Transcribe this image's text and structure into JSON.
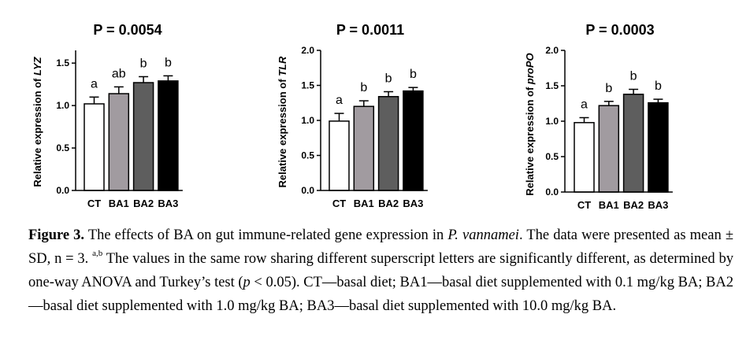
{
  "chart_data": [
    {
      "type": "bar",
      "title": "P = 0.0054",
      "ylabel_prefix": "Relative expression of ",
      "ylabel_gene": "LYZ",
      "categories": [
        "CT",
        "BA1",
        "BA2",
        "BA3"
      ],
      "values": [
        1.02,
        1.14,
        1.27,
        1.29
      ],
      "errors": [
        0.08,
        0.08,
        0.07,
        0.06
      ],
      "letters": [
        "a",
        "ab",
        "b",
        "b"
      ],
      "yticks": [
        "0.0",
        "0.5",
        "1.0",
        "1.5"
      ],
      "ylim": [
        0,
        1.65
      ],
      "colors": [
        "#ffffff",
        "#a19ba0",
        "#5e5e5e",
        "#000000"
      ]
    },
    {
      "type": "bar",
      "title": "P = 0.0011",
      "ylabel_prefix": "Relative expression of ",
      "ylabel_gene": "TLR",
      "categories": [
        "CT",
        "BA1",
        "BA2",
        "BA3"
      ],
      "values": [
        0.99,
        1.2,
        1.34,
        1.42
      ],
      "errors": [
        0.11,
        0.08,
        0.07,
        0.05
      ],
      "letters": [
        "a",
        "b",
        "b",
        "b"
      ],
      "yticks": [
        "0.0",
        "0.5",
        "1.0",
        "1.5",
        "2.0"
      ],
      "ylim": [
        0,
        2.0
      ],
      "colors": [
        "#ffffff",
        "#a19ba0",
        "#5e5e5e",
        "#000000"
      ]
    },
    {
      "type": "bar",
      "title": "P = 0.0003",
      "ylabel_prefix": "Relative expression of ",
      "ylabel_gene": "proPO",
      "categories": [
        "CT",
        "BA1",
        "BA2",
        "BA3"
      ],
      "values": [
        0.98,
        1.22,
        1.38,
        1.26
      ],
      "errors": [
        0.07,
        0.06,
        0.07,
        0.05
      ],
      "letters": [
        "a",
        "b",
        "b",
        "b"
      ],
      "yticks": [
        "0.0",
        "0.5",
        "1.0",
        "1.5",
        "2.0"
      ],
      "ylim": [
        0,
        2.0
      ],
      "colors": [
        "#ffffff",
        "#a19ba0",
        "#5e5e5e",
        "#000000"
      ]
    }
  ],
  "caption": {
    "label": "Figure 3.",
    "text1": " The effects of BA on gut immune-related gene expression in ",
    "species": "P. vannamei",
    "text2": ". The data were presented as mean ± SD, n = 3. ",
    "superscript": "a,b",
    "text3": " The values in the same row sharing different superscript letters are significantly different, as determined by one-way ANOVA and Turkey’s test (",
    "p_symbol": "p",
    "text4": " < 0.05). CT—basal diet; BA1—basal diet supplemented with 0.1 mg/kg BA; BA2—basal diet supplemented with 1.0 mg/kg BA; BA3—basal diet supplemented with 10.0 mg/kg BA."
  }
}
